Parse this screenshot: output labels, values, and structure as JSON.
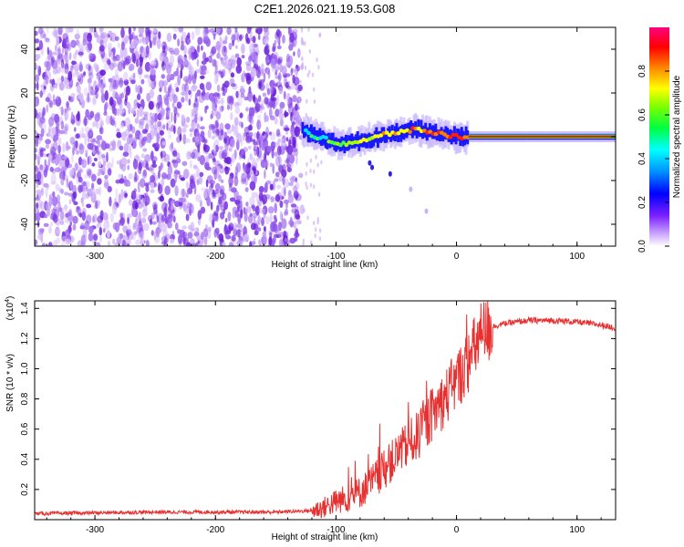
{
  "chart_data": [
    {
      "type": "heatmap",
      "title": "C2E1.2026.021.19.53.G08",
      "xlabel": "Height of straight line (km)",
      "ylabel": "Frequency (Hz)",
      "xlim": [
        -350,
        132
      ],
      "ylim": [
        -50,
        50
      ],
      "xticks": [
        -300,
        -200,
        -100,
        0,
        100
      ],
      "yticks": [
        -40,
        -20,
        0,
        20,
        40
      ],
      "colorbar": {
        "label": "Normalized spectral amplitude",
        "range": [
          0.0,
          1.0
        ],
        "ticks": [
          0.0,
          0.2,
          0.4,
          0.6,
          0.8
        ]
      },
      "regions": [
        {
          "name": "noise",
          "x_from": -350,
          "x_to": -128,
          "amplitude": "0.0-0.1",
          "color": "#7a2be0"
        },
        {
          "name": "sparse-scatter",
          "x_from": -128,
          "x_to": -112,
          "amplitude": "0.0-0.1"
        },
        {
          "name": "signal",
          "x_from": -128,
          "x_to": 132,
          "center_freq_hz": 0,
          "peak_amplitude": 1.0
        }
      ],
      "signal_trace": [
        {
          "x": -128,
          "f": 3
        },
        {
          "x": -120,
          "f": 1
        },
        {
          "x": -110,
          "f": -1
        },
        {
          "x": -100,
          "f": -3
        },
        {
          "x": -90,
          "f": -3
        },
        {
          "x": -80,
          "f": -2
        },
        {
          "x": -70,
          "f": -1
        },
        {
          "x": -60,
          "f": 1
        },
        {
          "x": -50,
          "f": 2
        },
        {
          "x": -40,
          "f": 3
        },
        {
          "x": -30,
          "f": 3
        },
        {
          "x": -20,
          "f": 2
        },
        {
          "x": -10,
          "f": 1
        },
        {
          "x": 0,
          "f": 0
        },
        {
          "x": 10,
          "f": 0
        },
        {
          "x": 132,
          "f": 0
        }
      ]
    },
    {
      "type": "line",
      "xlabel": "Height of straight line (km)",
      "ylabel": "SNR (10 * v/v)",
      "y_multiplier": "(x10",
      "y_exponent": "4",
      "y_multiplier_close": ")",
      "xlim": [
        -350,
        132
      ],
      "ylim": [
        0,
        1.45
      ],
      "xticks": [
        -300,
        -200,
        -100,
        0,
        100
      ],
      "yticks": [
        0.2,
        0.4,
        0.6,
        0.8,
        1.0,
        1.2,
        1.4
      ],
      "series": [
        {
          "name": "SNR",
          "color": "#e83030",
          "x": [
            -350,
            -300,
            -250,
            -200,
            -150,
            -120,
            -110,
            -100,
            -90,
            -80,
            -70,
            -60,
            -50,
            -40,
            -30,
            -20,
            -10,
            0,
            10,
            20,
            30,
            40,
            60,
            80,
            100,
            120,
            132
          ],
          "y": [
            0.04,
            0.045,
            0.05,
            0.05,
            0.05,
            0.06,
            0.08,
            0.12,
            0.15,
            0.18,
            0.25,
            0.33,
            0.42,
            0.5,
            0.57,
            0.7,
            0.8,
            0.92,
            1.05,
            1.22,
            1.28,
            1.3,
            1.32,
            1.32,
            1.31,
            1.29,
            1.27
          ]
        }
      ]
    }
  ]
}
